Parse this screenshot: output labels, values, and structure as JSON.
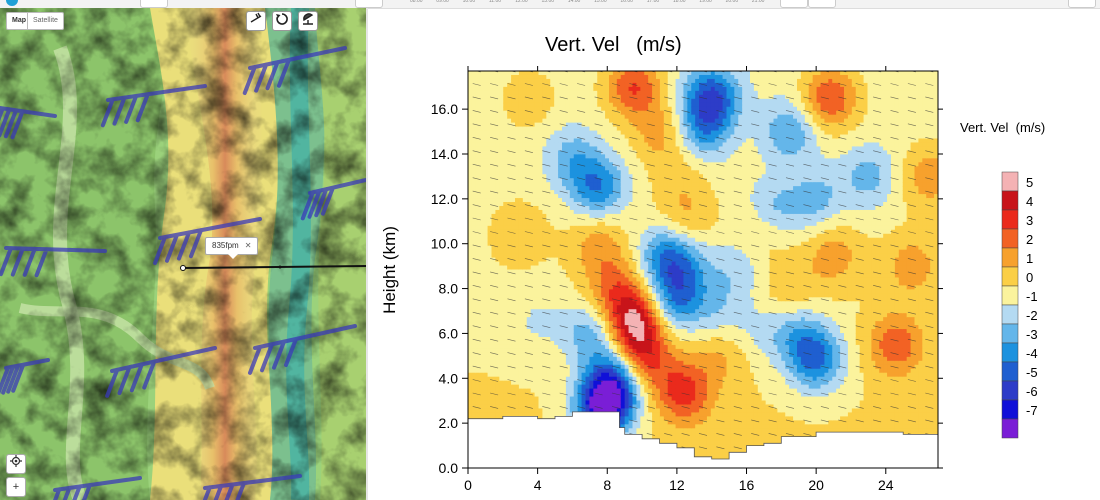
{
  "top_bar": {
    "time_labels": [
      "08:00",
      "09:00",
      "10:00",
      "11:00",
      "12:00",
      "13:00",
      "14:00",
      "15:00",
      "16:00",
      "17:00",
      "18:00",
      "19:00",
      "20:00",
      "21:00"
    ]
  },
  "map": {
    "tabs": [
      {
        "label": "Map",
        "selected": true
      },
      {
        "label": "Satellite",
        "selected": false
      }
    ],
    "route_label": "835fpm",
    "close_glyph": "✕",
    "tools": [
      {
        "icon": "wind-barb-icon"
      },
      {
        "icon": "circular-arrows-icon"
      },
      {
        "icon": "radar-dish-icon"
      }
    ],
    "controls": [
      {
        "icon": "locate-icon"
      },
      {
        "icon": "zoom-in-icon",
        "glyph": "+"
      }
    ]
  },
  "chart_data": {
    "type": "heatmap",
    "title": "Vert. Vel   (m/s)",
    "xlabel": "",
    "ylabel": "Height (km)",
    "xlim": [
      0,
      27
    ],
    "ylim": [
      0,
      17.7
    ],
    "x_ticks": [
      "0",
      "4",
      "8",
      "12",
      "16",
      "20",
      "24"
    ],
    "y_ticks": [
      "0.0",
      "2.0",
      "4.0",
      "6.0",
      "8.0",
      "10.0",
      "12.0",
      "14.0",
      "16.0"
    ],
    "colorbar_title": "Vert. Vel  (m/s)",
    "colorbar": [
      {
        "label": "5",
        "color": "#f4b2b4"
      },
      {
        "label": "4",
        "color": "#c8141a"
      },
      {
        "label": "3",
        "color": "#ea2a1c"
      },
      {
        "label": "2",
        "color": "#f26224"
      },
      {
        "label": "1",
        "color": "#f7a12d"
      },
      {
        "label": "0",
        "color": "#fbcf47"
      },
      {
        "label": "-1",
        "color": "#fbf39d"
      },
      {
        "label": "-2",
        "color": "#b4daf2"
      },
      {
        "label": "-3",
        "color": "#64b6ea"
      },
      {
        "label": "-4",
        "color": "#1c92df"
      },
      {
        "label": "-5",
        "color": "#1f5fd0"
      },
      {
        "label": "-6",
        "color": "#2d3cc8"
      },
      {
        "label": "-7",
        "color": "#1010d8"
      },
      {
        "label": "",
        "color": "#7a1ed6"
      }
    ],
    "features": [
      {
        "x": 9.5,
        "y": 17.0,
        "w": 3.5
      },
      {
        "x": 11.0,
        "y": 15.0,
        "w": 1.8
      },
      {
        "x": 12.2,
        "y": 13.0,
        "w": 1.0
      },
      {
        "x": 20.8,
        "y": 16.5,
        "w": 3.5
      },
      {
        "x": 26.5,
        "y": 13.0,
        "w": 2.0
      },
      {
        "x": 9.6,
        "y": 6.5,
        "w": 5.0
      },
      {
        "x": 10.0,
        "y": 4.8,
        "w": 3.5
      },
      {
        "x": 12.4,
        "y": 3.4,
        "w": 3.5
      },
      {
        "x": 8.5,
        "y": 8.0,
        "w": 2.5
      },
      {
        "x": 7.5,
        "y": 10.0,
        "w": 1.8
      },
      {
        "x": 21.0,
        "y": 9.5,
        "w": 1.8
      },
      {
        "x": 24.6,
        "y": 5.5,
        "w": 2.8
      },
      {
        "x": 25.5,
        "y": 9.0,
        "w": 1.8
      },
      {
        "x": 18.5,
        "y": 8.0,
        "w": 1.2
      },
      {
        "x": 12.5,
        "y": 11.0,
        "w": 1.5
      },
      {
        "x": 14.5,
        "y": 5.0,
        "w": 1.2
      },
      {
        "x": 3.5,
        "y": 16.5,
        "w": 1.2
      },
      {
        "x": 3.0,
        "y": 10.5,
        "w": 1.0
      },
      {
        "x": 16.8,
        "y": 10.5,
        "w": 1.2
      },
      {
        "x": 0.5,
        "y": 1.5,
        "w": 0.8
      },
      {
        "x": 14.0,
        "y": 16.5,
        "w": -4.5
      },
      {
        "x": 13.5,
        "y": 15.0,
        "w": -2.5
      },
      {
        "x": 7.5,
        "y": 12.5,
        "w": -3.5
      },
      {
        "x": 6.0,
        "y": 13.8,
        "w": -2.0
      },
      {
        "x": 8.5,
        "y": 4.0,
        "w": -4.5
      },
      {
        "x": 7.8,
        "y": 2.7,
        "w": -7.5
      },
      {
        "x": 7.0,
        "y": 6.0,
        "w": -2.5
      },
      {
        "x": 12.0,
        "y": 7.5,
        "w": -3.5
      },
      {
        "x": 11.3,
        "y": 9.5,
        "w": -3.0
      },
      {
        "x": 12.5,
        "y": 9.0,
        "w": -2.0
      },
      {
        "x": 17.5,
        "y": 11.5,
        "w": -2.0
      },
      {
        "x": 20.0,
        "y": 4.8,
        "w": -4.0
      },
      {
        "x": 19.0,
        "y": 6.0,
        "w": -2.0
      },
      {
        "x": 20.0,
        "y": 12.0,
        "w": -2.0
      },
      {
        "x": 23.0,
        "y": 13.0,
        "w": -2.0
      },
      {
        "x": 14.5,
        "y": 7.0,
        "w": -1.5
      },
      {
        "x": 18.5,
        "y": 15.0,
        "w": -2.5
      },
      {
        "x": 15.5,
        "y": 9.0,
        "w": -1.5
      },
      {
        "x": 17.0,
        "y": 6.0,
        "w": -1.0
      },
      {
        "x": 4.0,
        "y": 6.5,
        "w": -1.0
      }
    ],
    "terrain": [
      [
        0,
        2.2
      ],
      [
        2,
        2.3
      ],
      [
        4,
        2.2
      ],
      [
        5,
        2.3
      ],
      [
        6,
        2.5
      ],
      [
        8,
        2.5
      ],
      [
        8.7,
        1.8
      ],
      [
        9,
        1.5
      ],
      [
        10,
        1.3
      ],
      [
        11,
        1.1
      ],
      [
        12,
        0.9
      ],
      [
        13,
        0.5
      ],
      [
        14,
        0.4
      ],
      [
        15,
        0.7
      ],
      [
        16,
        1.0
      ],
      [
        17,
        1.1
      ],
      [
        18,
        1.4
      ],
      [
        19,
        1.4
      ],
      [
        20,
        1.6
      ],
      [
        21,
        1.6
      ],
      [
        22,
        1.6
      ],
      [
        23,
        1.6
      ],
      [
        24,
        1.6
      ],
      [
        25,
        1.5
      ],
      [
        27,
        1.5
      ]
    ]
  }
}
